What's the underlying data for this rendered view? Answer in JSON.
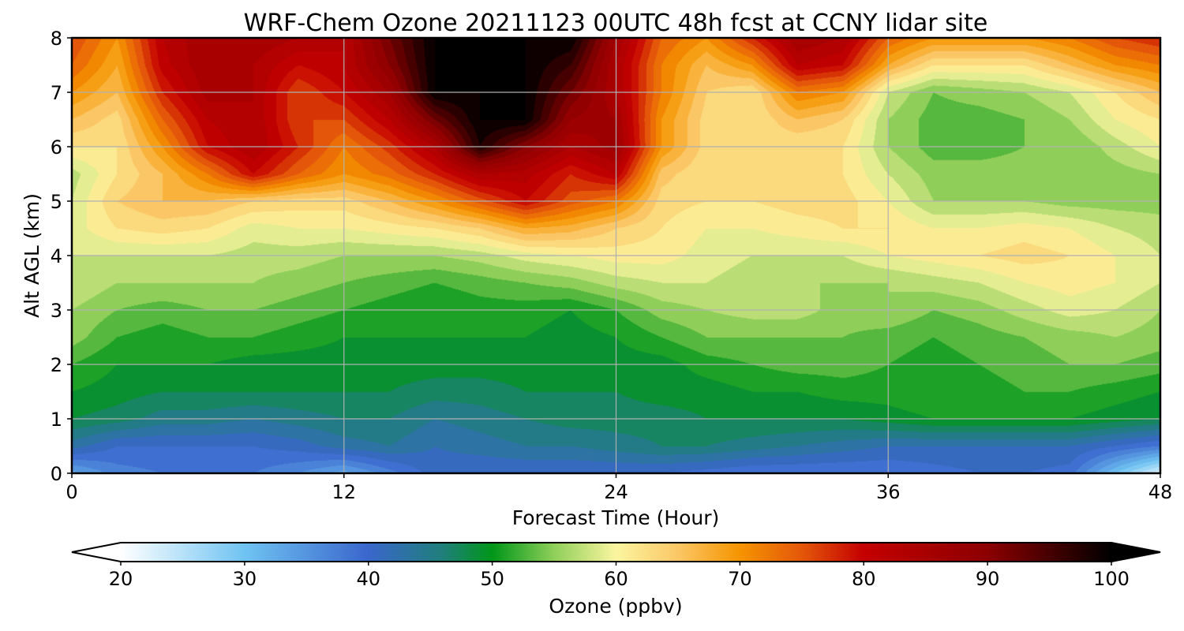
{
  "chart_data": {
    "type": "heatmap",
    "title": "WRF-Chem Ozone  20211123 00UTC 48h fcst at CCNY lidar site",
    "xlabel": "Forecast Time (Hour)",
    "ylabel": "Alt AGL (km)",
    "xlim": [
      0,
      48
    ],
    "ylim": [
      0,
      8
    ],
    "xticks": [
      0,
      12,
      24,
      36,
      48
    ],
    "yticks": [
      0,
      1,
      2,
      3,
      4,
      5,
      6,
      7,
      8
    ],
    "grid": true,
    "colorbar": {
      "label": "Ozone  (ppbv)",
      "orientation": "horizontal",
      "placement": "bottom",
      "range": [
        20,
        100
      ],
      "ticks": [
        20,
        30,
        40,
        50,
        60,
        70,
        80,
        90,
        100
      ],
      "extend": "both",
      "stops": [
        {
          "v": 20,
          "c": "#ffffff"
        },
        {
          "v": 30,
          "c": "#6fc3f2"
        },
        {
          "v": 40,
          "c": "#3a66cc"
        },
        {
          "v": 46,
          "c": "#1f7f7a"
        },
        {
          "v": 50,
          "c": "#009619"
        },
        {
          "v": 55,
          "c": "#8fcf59"
        },
        {
          "v": 60,
          "c": "#fbf5a0"
        },
        {
          "v": 65,
          "c": "#fbc766"
        },
        {
          "v": 70,
          "c": "#f59400"
        },
        {
          "v": 75,
          "c": "#e4570a"
        },
        {
          "v": 80,
          "c": "#c40000"
        },
        {
          "v": 90,
          "c": "#8c0000"
        },
        {
          "v": 100,
          "c": "#000000"
        }
      ]
    },
    "x_hours": [
      0,
      2,
      4,
      6,
      8,
      10,
      12,
      14,
      16,
      18,
      20,
      22,
      24,
      26,
      28,
      30,
      32,
      34,
      36,
      38,
      40,
      42,
      44,
      46,
      48
    ],
    "y_km": [
      0,
      0.5,
      1,
      1.5,
      2,
      2.5,
      3,
      3.5,
      4,
      4.5,
      5,
      5.5,
      6,
      6.5,
      7,
      7.5,
      8
    ],
    "values_ppbv": [
      [
        33,
        37,
        38,
        38,
        38,
        36,
        33,
        37,
        41,
        40,
        40,
        40,
        40,
        40,
        39,
        38,
        38,
        38,
        38,
        39,
        40,
        40,
        39,
        30,
        22
      ],
      [
        43,
        40,
        40,
        40,
        40,
        41,
        43,
        44,
        42,
        43,
        44,
        44,
        45,
        46,
        46,
        45,
        44,
        43,
        42,
        42,
        42,
        42,
        42,
        40,
        38
      ],
      [
        48,
        47,
        45,
        45,
        44,
        45,
        46,
        46,
        44,
        45,
        46,
        47,
        47,
        47,
        48,
        48,
        48,
        48,
        49,
        50,
        50,
        50,
        50,
        49,
        48
      ],
      [
        50,
        49,
        48,
        48,
        48,
        48,
        48,
        48,
        47,
        47,
        48,
        48,
        48,
        49,
        49,
        50,
        50,
        51,
        51,
        52,
        51,
        52,
        52,
        51,
        50
      ],
      [
        52,
        50,
        50,
        50,
        49,
        49,
        49,
        49,
        49,
        49,
        49,
        49,
        49,
        49,
        51,
        52,
        53,
        53,
        52,
        51,
        52,
        53,
        54,
        54,
        53
      ],
      [
        55,
        52,
        51,
        52,
        52,
        51,
        50,
        50,
        50,
        50,
        50,
        49,
        50,
        52,
        54,
        54,
        54,
        54,
        53,
        52,
        53,
        54,
        55,
        56,
        55
      ],
      [
        56,
        54,
        53,
        54,
        54,
        53,
        52,
        51,
        50,
        51,
        51,
        50,
        52,
        55,
        56,
        57,
        57,
        55,
        56,
        54,
        55,
        57,
        59,
        58,
        56
      ],
      [
        58,
        56,
        56,
        56,
        56,
        55,
        54,
        53,
        52,
        53,
        54,
        55,
        57,
        58,
        58,
        57,
        56,
        56,
        56,
        57,
        58,
        60,
        61,
        60,
        58
      ],
      [
        58,
        58,
        58,
        58,
        57,
        57,
        56,
        56,
        56,
        57,
        59,
        60,
        61,
        61,
        59,
        58,
        58,
        58,
        60,
        61,
        62,
        63,
        62,
        60,
        58
      ],
      [
        59,
        62,
        63,
        62,
        59,
        60,
        60,
        61,
        62,
        64,
        68,
        67,
        64,
        62,
        60,
        60,
        61,
        62,
        62,
        60,
        60,
        61,
        60,
        58,
        57
      ],
      [
        58,
        64,
        66,
        66,
        64,
        63,
        63,
        66,
        70,
        75,
        80,
        75,
        72,
        63,
        62,
        62,
        63,
        63,
        60,
        56,
        56,
        56,
        55,
        55,
        55
      ],
      [
        57,
        62,
        66,
        72,
        80,
        74,
        70,
        73,
        78,
        84,
        83,
        78,
        82,
        65,
        62,
        62,
        63,
        62,
        58,
        55,
        55,
        55,
        54,
        55,
        56
      ],
      [
        62,
        62,
        70,
        80,
        84,
        78,
        72,
        77,
        84,
        98,
        90,
        84,
        87,
        70,
        63,
        63,
        62,
        62,
        56,
        53,
        53,
        54,
        54,
        57,
        60
      ],
      [
        66,
        63,
        74,
        82,
        84,
        76,
        76,
        82,
        92,
        100,
        100,
        88,
        86,
        70,
        63,
        62,
        66,
        64,
        56,
        53,
        53,
        54,
        56,
        60,
        62
      ],
      [
        70,
        66,
        78,
        85,
        84,
        76,
        80,
        86,
        100,
        100,
        100,
        92,
        84,
        72,
        64,
        62,
        72,
        70,
        58,
        54,
        55,
        56,
        58,
        62,
        66
      ],
      [
        74,
        68,
        81,
        86,
        84,
        80,
        82,
        90,
        100,
        100,
        100,
        96,
        84,
        72,
        66,
        70,
        82,
        80,
        68,
        62,
        62,
        62,
        66,
        70,
        72
      ],
      [
        76,
        70,
        82,
        86,
        86,
        84,
        82,
        92,
        100,
        100,
        100,
        100,
        86,
        74,
        70,
        78,
        86,
        84,
        74,
        70,
        70,
        70,
        72,
        76,
        78
      ]
    ]
  }
}
